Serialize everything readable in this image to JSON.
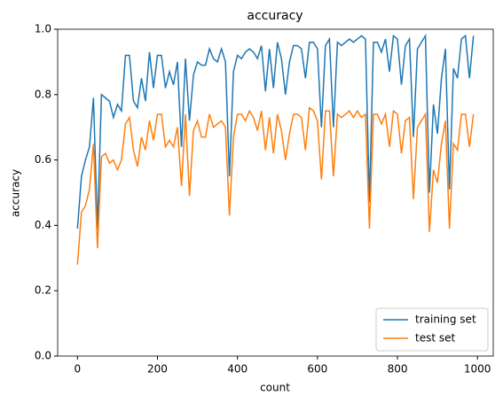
{
  "chart_data": {
    "type": "line",
    "title": "accuracy",
    "xlabel": "count",
    "ylabel": "accuracy",
    "x": [
      0,
      10,
      20,
      30,
      40,
      50,
      60,
      70,
      80,
      90,
      100,
      110,
      120,
      130,
      140,
      150,
      160,
      170,
      180,
      190,
      200,
      210,
      220,
      230,
      240,
      250,
      260,
      270,
      280,
      290,
      300,
      310,
      320,
      330,
      340,
      350,
      360,
      370,
      380,
      390,
      400,
      410,
      420,
      430,
      440,
      450,
      460,
      470,
      480,
      490,
      500,
      510,
      520,
      530,
      540,
      550,
      560,
      570,
      580,
      590,
      600,
      610,
      620,
      630,
      640,
      650,
      660,
      670,
      680,
      690,
      700,
      710,
      720,
      730,
      740,
      750,
      760,
      770,
      780,
      790,
      800,
      810,
      820,
      830,
      840,
      850,
      860,
      870,
      880,
      890,
      900,
      910,
      920,
      930,
      940,
      950,
      960,
      970,
      980,
      990
    ],
    "series": [
      {
        "name": "training set",
        "color": "#1f77b4",
        "values": [
          0.39,
          0.55,
          0.6,
          0.64,
          0.79,
          0.39,
          0.8,
          0.79,
          0.78,
          0.73,
          0.77,
          0.75,
          0.92,
          0.92,
          0.78,
          0.76,
          0.85,
          0.78,
          0.93,
          0.82,
          0.92,
          0.92,
          0.82,
          0.87,
          0.83,
          0.9,
          0.64,
          0.91,
          0.72,
          0.86,
          0.9,
          0.89,
          0.89,
          0.94,
          0.91,
          0.9,
          0.94,
          0.9,
          0.55,
          0.87,
          0.92,
          0.91,
          0.93,
          0.94,
          0.93,
          0.91,
          0.95,
          0.81,
          0.94,
          0.82,
          0.96,
          0.91,
          0.8,
          0.9,
          0.95,
          0.95,
          0.94,
          0.85,
          0.96,
          0.96,
          0.94,
          0.7,
          0.95,
          0.97,
          0.7,
          0.96,
          0.95,
          0.96,
          0.97,
          0.96,
          0.97,
          0.98,
          0.97,
          0.47,
          0.96,
          0.96,
          0.93,
          0.97,
          0.87,
          0.98,
          0.97,
          0.83,
          0.95,
          0.97,
          0.67,
          0.94,
          0.96,
          0.98,
          0.5,
          0.77,
          0.68,
          0.85,
          0.94,
          0.51,
          0.88,
          0.85,
          0.97,
          0.98,
          0.85,
          0.98
        ]
      },
      {
        "name": "test set",
        "color": "#ff7f0e",
        "values": [
          0.28,
          0.44,
          0.46,
          0.51,
          0.65,
          0.33,
          0.61,
          0.62,
          0.59,
          0.6,
          0.57,
          0.6,
          0.71,
          0.73,
          0.63,
          0.58,
          0.67,
          0.63,
          0.72,
          0.66,
          0.74,
          0.74,
          0.64,
          0.66,
          0.64,
          0.7,
          0.52,
          0.74,
          0.49,
          0.69,
          0.72,
          0.67,
          0.67,
          0.74,
          0.7,
          0.71,
          0.72,
          0.7,
          0.43,
          0.67,
          0.74,
          0.74,
          0.72,
          0.75,
          0.73,
          0.69,
          0.75,
          0.63,
          0.73,
          0.62,
          0.74,
          0.69,
          0.6,
          0.68,
          0.74,
          0.74,
          0.73,
          0.63,
          0.76,
          0.75,
          0.72,
          0.54,
          0.75,
          0.75,
          0.55,
          0.74,
          0.73,
          0.74,
          0.75,
          0.73,
          0.75,
          0.73,
          0.74,
          0.39,
          0.74,
          0.74,
          0.71,
          0.74,
          0.64,
          0.75,
          0.74,
          0.62,
          0.72,
          0.73,
          0.48,
          0.7,
          0.72,
          0.74,
          0.38,
          0.57,
          0.53,
          0.65,
          0.72,
          0.39,
          0.65,
          0.63,
          0.74,
          0.74,
          0.64,
          0.74
        ]
      }
    ],
    "xlim": [
      -49.5,
      1039.5
    ],
    "xticks": [
      0,
      200,
      400,
      600,
      800,
      1000
    ],
    "ylim": [
      0,
      1
    ],
    "yticks": [
      {
        "value": 0,
        "label": "0.0"
      },
      {
        "value": 0.2,
        "label": "0.2"
      },
      {
        "value": 0.4,
        "label": "0.4"
      },
      {
        "value": 0.6,
        "label": "0.6"
      },
      {
        "value": 0.8,
        "label": "0.8"
      },
      {
        "value": 1,
        "label": "1.0"
      }
    ],
    "legend": "lower right"
  }
}
